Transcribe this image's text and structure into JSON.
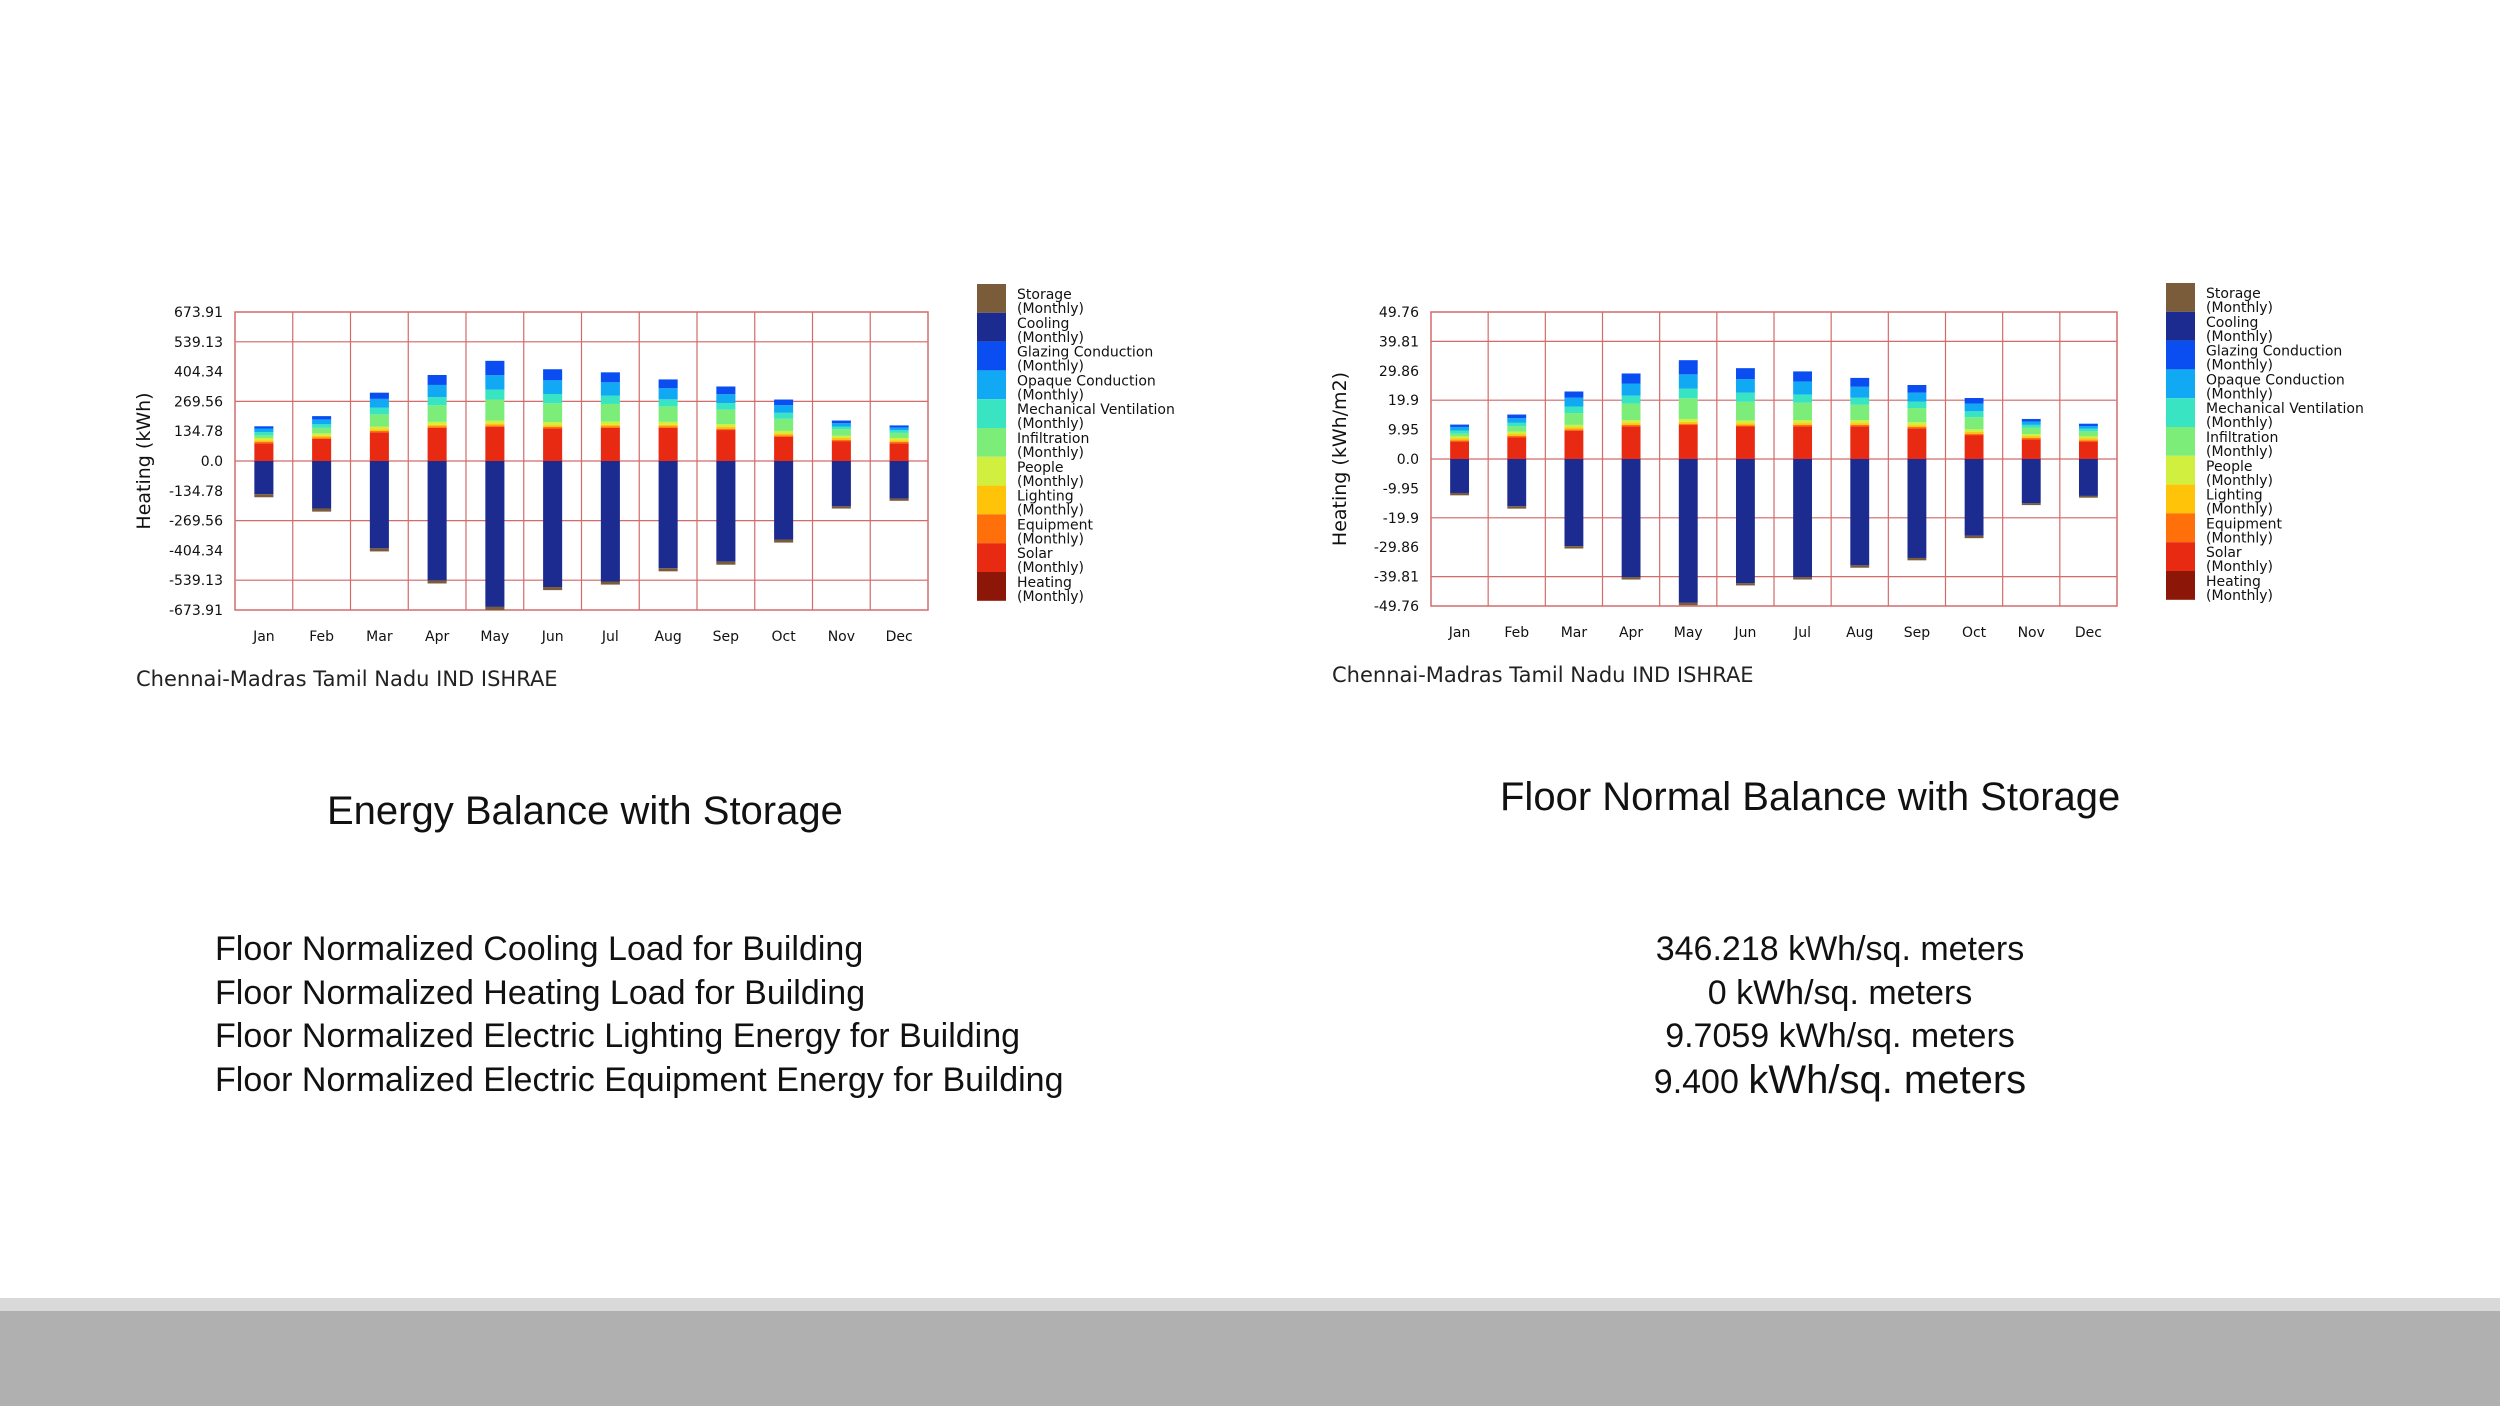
{
  "legend": [
    {
      "name": "Storage",
      "sub": "(Monthly)",
      "color": "#7a5c3a"
    },
    {
      "name": "Cooling",
      "sub": "(Monthly)",
      "color": "#1c2b8f"
    },
    {
      "name": "Glazing Conduction",
      "sub": "(Monthly)",
      "color": "#0a4ef2"
    },
    {
      "name": "Opaque Conduction",
      "sub": "(Monthly)",
      "color": "#11a8f4"
    },
    {
      "name": "Mechanical Ventilation",
      "sub": "(Monthly)",
      "color": "#39e4c2"
    },
    {
      "name": "Infiltration",
      "sub": "(Monthly)",
      "color": "#7ded7a"
    },
    {
      "name": "People",
      "sub": "(Monthly)",
      "color": "#d1ef3f"
    },
    {
      "name": "Lighting",
      "sub": "(Monthly)",
      "color": "#ffc40a"
    },
    {
      "name": "Equipment",
      "sub": "(Monthly)",
      "color": "#ff6f0a"
    },
    {
      "name": "Solar",
      "sub": "(Monthly)",
      "color": "#e92a12"
    },
    {
      "name": "Heating",
      "sub": "(Monthly)",
      "color": "#8c1608"
    }
  ],
  "charts_meta": {
    "left": {
      "caption": "Chennai-Madras Tamil Nadu IND ISHRAE",
      "title": "Energy Balance with Storage"
    },
    "right": {
      "caption": "Chennai-Madras Tamil Nadu IND ISHRAE",
      "title": "Floor Normal Balance with Storage"
    }
  },
  "stats": [
    {
      "label": "Floor Normalized Cooling Load for Building",
      "value": "346.218 kWh/sq. meters"
    },
    {
      "label": "Floor Normalized Heating Load for Building",
      "value": "0 kWh/sq. meters"
    },
    {
      "label": "Floor Normalized Electric Lighting Energy for Building",
      "value": "9.7059 kWh/sq. meters"
    },
    {
      "label": "Floor Normalized Electric Equipment Energy for Building",
      "value_num": "9.400",
      "value_unit": "kWh/sq. meters"
    }
  ],
  "chart_data": [
    {
      "type": "bar",
      "stacked": true,
      "title": "",
      "xlabel": "",
      "ylabel": "Heating (kWh)",
      "categories": [
        "Jan",
        "Feb",
        "Mar",
        "Apr",
        "May",
        "Jun",
        "Jul",
        "Aug",
        "Sep",
        "Oct",
        "Nov",
        "Dec"
      ],
      "yticks": [
        "673.91",
        "539.13",
        "404.34",
        "269.56",
        "134.78",
        "0.0",
        "-134.78",
        "-269.56",
        "-404.34",
        "-539.13",
        "-673.91"
      ],
      "ylim": [
        -673.91,
        673.91
      ],
      "series": [
        {
          "name": "Storage",
          "values": [
            -14,
            -14,
            -14,
            -14,
            -14,
            -14,
            -14,
            -14,
            -14,
            -14,
            -10,
            -10
          ]
        },
        {
          "name": "Cooling",
          "values": [
            -150,
            -215,
            -395,
            -540,
            -660,
            -570,
            -545,
            -485,
            -455,
            -355,
            -205,
            -170
          ]
        },
        {
          "name": "Glazing Conduction",
          "values": [
            10,
            15,
            28,
            45,
            65,
            50,
            45,
            40,
            35,
            25,
            12,
            10
          ]
        },
        {
          "name": "Opaque Conduction",
          "values": [
            16,
            22,
            40,
            55,
            65,
            62,
            60,
            50,
            40,
            35,
            15,
            12
          ]
        },
        {
          "name": "Mechanical Ventilation",
          "values": [
            15,
            16,
            30,
            37,
            45,
            42,
            38,
            32,
            30,
            27,
            12,
            12
          ]
        },
        {
          "name": "Infiltration",
          "values": [
            12,
            25,
            55,
            75,
            95,
            85,
            80,
            70,
            65,
            55,
            30,
            23
          ]
        },
        {
          "name": "People",
          "values": [
            10,
            11,
            12,
            13,
            14,
            14,
            14,
            13,
            13,
            12,
            10,
            10
          ]
        },
        {
          "name": "Lighting",
          "values": [
            8,
            8,
            8,
            8,
            8,
            8,
            8,
            8,
            8,
            8,
            8,
            8
          ]
        },
        {
          "name": "Equipment",
          "values": [
            6,
            6,
            6,
            6,
            6,
            6,
            6,
            6,
            6,
            6,
            6,
            6
          ]
        },
        {
          "name": "Solar",
          "values": [
            80,
            100,
            130,
            150,
            155,
            148,
            150,
            150,
            140,
            110,
            90,
            80
          ]
        }
      ]
    },
    {
      "type": "bar",
      "stacked": true,
      "title": "",
      "xlabel": "",
      "ylabel": "Heating (kWh/m2)",
      "categories": [
        "Jan",
        "Feb",
        "Mar",
        "Apr",
        "May",
        "Jun",
        "Jul",
        "Aug",
        "Sep",
        "Oct",
        "Nov",
        "Dec"
      ],
      "yticks": [
        "49.76",
        "39.81",
        "29.86",
        "19.9",
        "9.95",
        "0.0",
        "-9.95",
        "-19.9",
        "-29.86",
        "-39.81",
        "-49.76"
      ],
      "ylim": [
        -49.76,
        49.76
      ],
      "series": [
        {
          "name": "Storage",
          "values": [
            -0.8,
            -0.8,
            -0.8,
            -0.8,
            -0.8,
            -0.8,
            -0.8,
            -0.8,
            -0.8,
            -0.8,
            -0.6,
            -0.6
          ]
        },
        {
          "name": "Cooling",
          "values": [
            -11.5,
            -16,
            -29.5,
            -40,
            -48.7,
            -42,
            -40,
            -36,
            -33.5,
            -26,
            -15,
            -12.5
          ]
        },
        {
          "name": "Glazing Conduction",
          "values": [
            0.8,
            1.2,
            2.1,
            3.4,
            4.8,
            3.7,
            3.4,
            3,
            2.6,
            1.9,
            0.9,
            0.8
          ]
        },
        {
          "name": "Opaque Conduction",
          "values": [
            1.2,
            1.6,
            3,
            4.1,
            4.8,
            4.6,
            4.4,
            3.7,
            3,
            2.6,
            1.1,
            0.9
          ]
        },
        {
          "name": "Mechanical Ventilation",
          "values": [
            1.1,
            1.2,
            2.2,
            2.7,
            3.3,
            3.1,
            2.8,
            2.4,
            2.2,
            2,
            0.9,
            0.9
          ]
        },
        {
          "name": "Infiltration",
          "values": [
            0.9,
            1.8,
            4,
            5.6,
            7,
            6.3,
            5.9,
            5.2,
            4.8,
            4.1,
            2.2,
            1.7
          ]
        },
        {
          "name": "People",
          "values": [
            0.7,
            0.8,
            0.9,
            1,
            1,
            1,
            1,
            1,
            1,
            0.9,
            0.7,
            0.7
          ]
        },
        {
          "name": "Lighting",
          "values": [
            0.6,
            0.6,
            0.6,
            0.6,
            0.6,
            0.6,
            0.6,
            0.6,
            0.6,
            0.6,
            0.6,
            0.6
          ]
        },
        {
          "name": "Equipment",
          "values": [
            0.45,
            0.45,
            0.45,
            0.45,
            0.45,
            0.45,
            0.45,
            0.45,
            0.45,
            0.45,
            0.45,
            0.45
          ]
        },
        {
          "name": "Solar",
          "values": [
            5.9,
            7.4,
            9.6,
            11.1,
            11.5,
            11,
            11.1,
            11.1,
            10.4,
            8.1,
            6.7,
            5.9
          ]
        }
      ]
    }
  ]
}
